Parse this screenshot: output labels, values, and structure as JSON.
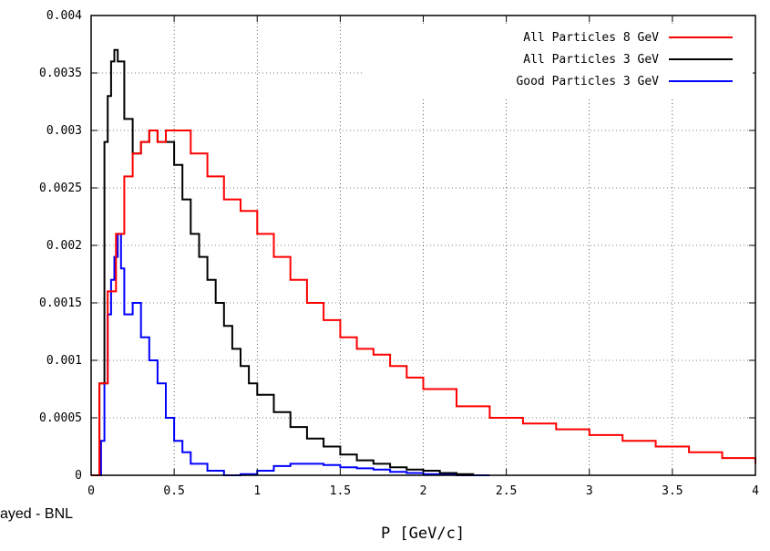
{
  "watermark": "ayed - BNL",
  "chart_data": {
    "type": "line",
    "title": "",
    "xlabel": "P  [GeV/c]",
    "ylabel": "",
    "xlim": [
      0,
      4
    ],
    "ylim": [
      0,
      0.004
    ],
    "x_ticks": [
      "0",
      "0.5",
      "1",
      "1.5",
      "2",
      "2.5",
      "3",
      "3.5",
      "4"
    ],
    "y_ticks": [
      "0",
      "0.0005",
      "0.001",
      "0.0015",
      "0.002",
      "0.0025",
      "0.003",
      "0.0035",
      "0.004"
    ],
    "grid": true,
    "legend_position": "top-right",
    "series": [
      {
        "name": "All Particles 8 GeV",
        "color": "#ff0000",
        "points": [
          [
            0.0,
            0.0
          ],
          [
            0.05,
            0.0008
          ],
          [
            0.1,
            0.0016
          ],
          [
            0.15,
            0.0021
          ],
          [
            0.2,
            0.0026
          ],
          [
            0.25,
            0.0028
          ],
          [
            0.3,
            0.0029
          ],
          [
            0.35,
            0.003
          ],
          [
            0.4,
            0.0029
          ],
          [
            0.45,
            0.003
          ],
          [
            0.5,
            0.003
          ],
          [
            0.6,
            0.0028
          ],
          [
            0.7,
            0.0026
          ],
          [
            0.8,
            0.0024
          ],
          [
            0.9,
            0.0023
          ],
          [
            1.0,
            0.0021
          ],
          [
            1.1,
            0.0019
          ],
          [
            1.2,
            0.0017
          ],
          [
            1.3,
            0.0015
          ],
          [
            1.4,
            0.00135
          ],
          [
            1.5,
            0.0012
          ],
          [
            1.6,
            0.0011
          ],
          [
            1.7,
            0.00105
          ],
          [
            1.8,
            0.00095
          ],
          [
            1.9,
            0.00085
          ],
          [
            2.0,
            0.00075
          ],
          [
            2.2,
            0.0006
          ],
          [
            2.4,
            0.0005
          ],
          [
            2.6,
            0.00045
          ],
          [
            2.8,
            0.0004
          ],
          [
            3.0,
            0.00035
          ],
          [
            3.2,
            0.0003
          ],
          [
            3.4,
            0.00025
          ],
          [
            3.6,
            0.0002
          ],
          [
            3.8,
            0.00015
          ],
          [
            4.0,
            0.0001
          ]
        ]
      },
      {
        "name": "All Particles 3 GeV",
        "color": "#000000",
        "points": [
          [
            0.0,
            0.0
          ],
          [
            0.05,
            0.0008
          ],
          [
            0.08,
            0.0029
          ],
          [
            0.1,
            0.0033
          ],
          [
            0.12,
            0.0036
          ],
          [
            0.14,
            0.0037
          ],
          [
            0.16,
            0.0036
          ],
          [
            0.2,
            0.0031
          ],
          [
            0.25,
            0.0028
          ],
          [
            0.3,
            0.0029
          ],
          [
            0.35,
            0.003
          ],
          [
            0.4,
            0.0029
          ],
          [
            0.45,
            0.0029
          ],
          [
            0.5,
            0.0027
          ],
          [
            0.55,
            0.0024
          ],
          [
            0.6,
            0.0021
          ],
          [
            0.65,
            0.0019
          ],
          [
            0.7,
            0.0017
          ],
          [
            0.75,
            0.0015
          ],
          [
            0.8,
            0.0013
          ],
          [
            0.85,
            0.0011
          ],
          [
            0.9,
            0.00095
          ],
          [
            0.95,
            0.0008
          ],
          [
            1.0,
            0.0007
          ],
          [
            1.1,
            0.00055
          ],
          [
            1.2,
            0.00042
          ],
          [
            1.3,
            0.00032
          ],
          [
            1.4,
            0.00025
          ],
          [
            1.5,
            0.00018
          ],
          [
            1.6,
            0.00013
          ],
          [
            1.7,
            0.0001
          ],
          [
            1.8,
            7e-05
          ],
          [
            1.9,
            5e-05
          ],
          [
            2.0,
            4e-05
          ],
          [
            2.1,
            2e-05
          ],
          [
            2.2,
            1e-05
          ],
          [
            2.3,
            0.0
          ]
        ]
      },
      {
        "name": "Good Particles 3 GeV",
        "color": "#0000ff",
        "points": [
          [
            0.0,
            0.0
          ],
          [
            0.06,
            0.0003
          ],
          [
            0.08,
            0.0008
          ],
          [
            0.1,
            0.0014
          ],
          [
            0.12,
            0.0017
          ],
          [
            0.14,
            0.0019
          ],
          [
            0.16,
            0.0021
          ],
          [
            0.18,
            0.0018
          ],
          [
            0.2,
            0.0014
          ],
          [
            0.25,
            0.0015
          ],
          [
            0.3,
            0.0012
          ],
          [
            0.35,
            0.001
          ],
          [
            0.4,
            0.0008
          ],
          [
            0.45,
            0.0005
          ],
          [
            0.5,
            0.0003
          ],
          [
            0.55,
            0.0002
          ],
          [
            0.6,
            0.0001
          ],
          [
            0.7,
            4e-05
          ],
          [
            0.8,
            0.0
          ],
          [
            0.9,
            1e-05
          ],
          [
            1.0,
            4e-05
          ],
          [
            1.1,
            8e-05
          ],
          [
            1.2,
            0.0001
          ],
          [
            1.3,
            0.0001
          ],
          [
            1.4,
            9e-05
          ],
          [
            1.5,
            7e-05
          ],
          [
            1.6,
            6e-05
          ],
          [
            1.7,
            5e-05
          ],
          [
            1.8,
            3e-05
          ],
          [
            1.9,
            2e-05
          ],
          [
            2.0,
            1e-05
          ],
          [
            2.2,
            0.0
          ],
          [
            2.4,
            0.0
          ]
        ]
      }
    ]
  }
}
